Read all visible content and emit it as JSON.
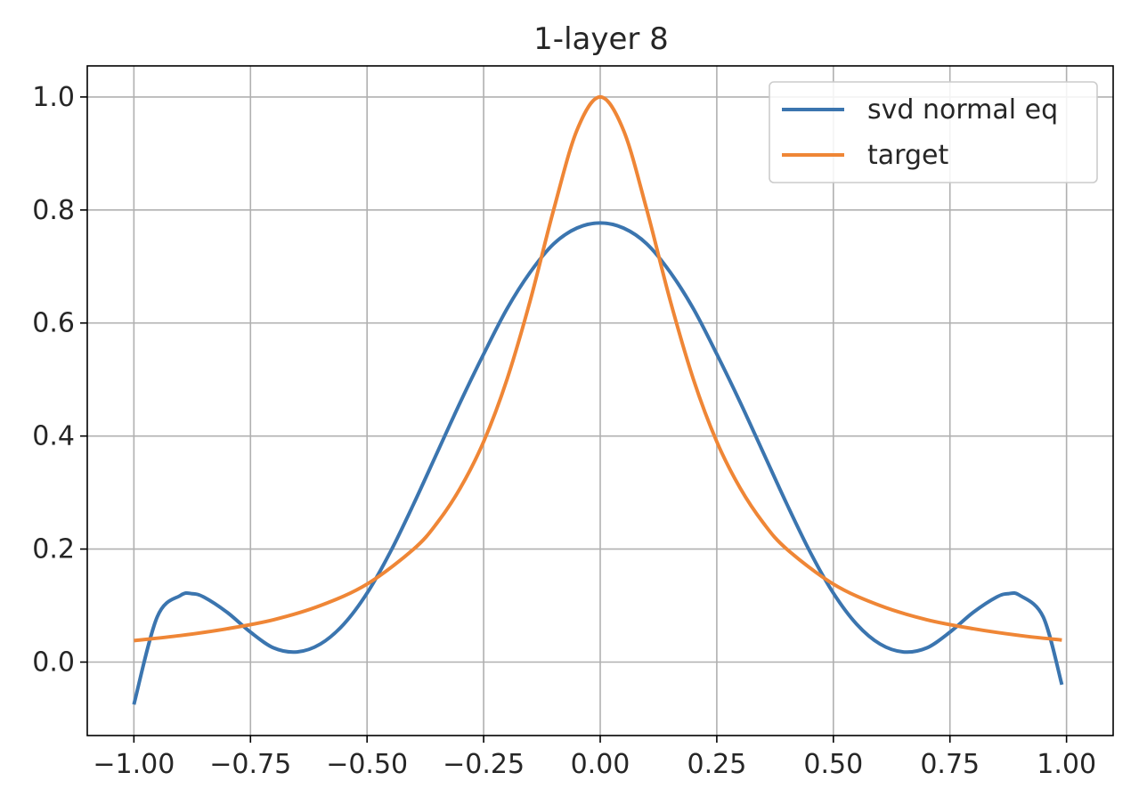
{
  "chart_data": {
    "type": "line",
    "title": "1-layer 8",
    "xlabel": "",
    "ylabel": "",
    "xlim": [
      -1.1,
      1.1
    ],
    "ylim": [
      -0.13,
      1.055
    ],
    "xticks": [
      -1.0,
      -0.75,
      -0.5,
      -0.25,
      0.0,
      0.25,
      0.5,
      0.75,
      1.0
    ],
    "xtick_labels": [
      "−1.00",
      "−0.75",
      "−0.50",
      "−0.25",
      "0.00",
      "0.25",
      "0.50",
      "0.75",
      "1.00"
    ],
    "yticks": [
      0.0,
      0.2,
      0.4,
      0.6,
      0.8,
      1.0
    ],
    "ytick_labels": [
      "0.0",
      "0.2",
      "0.4",
      "0.6",
      "0.8",
      "1.0"
    ],
    "grid": true,
    "legend_position": "top-right",
    "series": [
      {
        "name": "svd normal eq",
        "color": "#3b75af",
        "x": [
          -1.0,
          -0.95,
          -0.9,
          -0.875,
          -0.85,
          -0.8,
          -0.75,
          -0.7,
          -0.65,
          -0.6,
          -0.55,
          -0.5,
          -0.45,
          -0.4,
          -0.35,
          -0.3,
          -0.25,
          -0.2,
          -0.15,
          -0.1,
          -0.05,
          0.0,
          0.05,
          0.1,
          0.15,
          0.2,
          0.25,
          0.3,
          0.35,
          0.4,
          0.45,
          0.5,
          0.55,
          0.6,
          0.65,
          0.7,
          0.75,
          0.8,
          0.85,
          0.875,
          0.9,
          0.95,
          0.99
        ],
        "y": [
          -0.075,
          0.08,
          0.118,
          0.121,
          0.115,
          0.088,
          0.053,
          0.025,
          0.018,
          0.032,
          0.067,
          0.122,
          0.195,
          0.28,
          0.37,
          0.46,
          0.545,
          0.625,
          0.69,
          0.74,
          0.768,
          0.777,
          0.768,
          0.74,
          0.69,
          0.625,
          0.545,
          0.46,
          0.37,
          0.28,
          0.195,
          0.122,
          0.067,
          0.032,
          0.018,
          0.025,
          0.053,
          0.088,
          0.115,
          0.121,
          0.118,
          0.08,
          -0.04
        ]
      },
      {
        "name": "target",
        "color": "#ef8636",
        "x": [
          -1.0,
          -0.9,
          -0.8,
          -0.7,
          -0.6,
          -0.5,
          -0.4,
          -0.35,
          -0.3,
          -0.25,
          -0.2,
          -0.15,
          -0.1,
          -0.05,
          0.0,
          0.05,
          0.1,
          0.15,
          0.2,
          0.25,
          0.3,
          0.35,
          0.4,
          0.5,
          0.6,
          0.7,
          0.8,
          0.9,
          0.99
        ],
        "y": [
          0.038,
          0.047,
          0.059,
          0.075,
          0.1,
          0.138,
          0.2,
          0.246,
          0.308,
          0.39,
          0.5,
          0.64,
          0.8,
          0.941,
          1.0,
          0.941,
          0.8,
          0.64,
          0.5,
          0.39,
          0.308,
          0.246,
          0.2,
          0.138,
          0.1,
          0.075,
          0.059,
          0.047,
          0.039
        ]
      }
    ]
  }
}
